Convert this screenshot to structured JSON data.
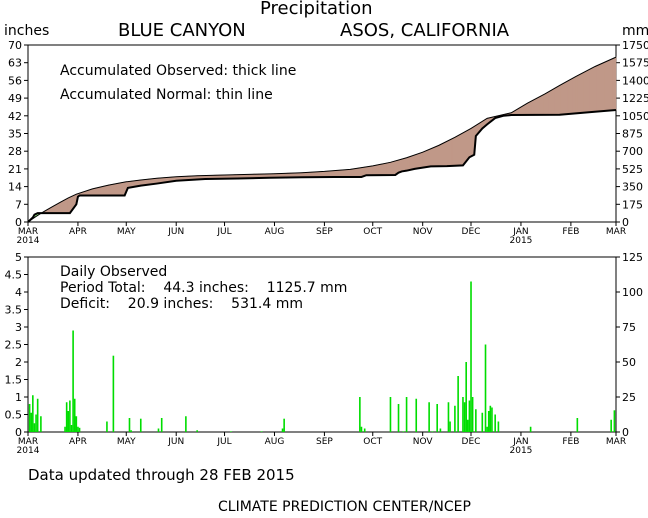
{
  "header": {
    "title": "Precipitation",
    "left_unit": "inches",
    "right_unit": "mm",
    "station": "BLUE CANYON",
    "network": "ASOS, CALIFORNIA"
  },
  "legend": {
    "line1": "Accumulated Observed: thick line",
    "line2": "Accumulated Normal: thin line"
  },
  "daily": {
    "title": "Daily Observed",
    "total": "Period Total:    44.3 inches:    1125.7 mm",
    "deficit": "Deficit:    20.9 inches:    531.4 mm"
  },
  "footer": {
    "updated": "Data updated through 28 FEB 2015",
    "credit": "CLIMATE PREDICTION CENTER/NCEP"
  },
  "chart_data": [
    {
      "type": "area",
      "x_tick_labels": [
        "MAR\n2014",
        "APR",
        "MAY",
        "JUN",
        "JUL",
        "AUG",
        "SEP",
        "OCT",
        "NOV",
        "DEC",
        "JAN\n2015",
        "FEB",
        "MAR"
      ],
      "y_ticks_inches": [
        0,
        7,
        14,
        21,
        28,
        35,
        42,
        49,
        56,
        63,
        70
      ],
      "y_ticks_mm": [
        0,
        175,
        350,
        525,
        700,
        875,
        1050,
        1225,
        1400,
        1575,
        1750
      ],
      "ylim": [
        0,
        70
      ],
      "ylim_mm": [
        0,
        1750
      ],
      "surplus_color": "#99ee88",
      "deficit_color": "#c09888",
      "series": [
        {
          "x": [
            0,
            5,
            10,
            15,
            20,
            25,
            30,
            40,
            50,
            61,
            70,
            80,
            92,
            105,
            122,
            140,
            153,
            170,
            184,
            200,
            214,
            225,
            235,
            245,
            255,
            265,
            275,
            285,
            300,
            310,
            321,
            330,
            340,
            352,
            365
          ],
          "values": [
            0,
            2.2,
            4.2,
            6,
            7.8,
            9.5,
            11,
            13.1,
            14.6,
            15.9,
            16.6,
            17.3,
            17.9,
            18.3,
            18.6,
            18.9,
            19.1,
            19.5,
            20,
            20.8,
            22.2,
            23.6,
            25.4,
            27.6,
            30.3,
            33.5,
            37,
            41,
            43.2,
            47,
            50.7,
            54,
            57.5,
            61.5,
            65.2
          ]
        },
        {
          "x": [
            0,
            3,
            4,
            6,
            10,
            15,
            20,
            26,
            30,
            31,
            32,
            50,
            60,
            62,
            70,
            80,
            92,
            110,
            130,
            150,
            170,
            190,
            207,
            210,
            228,
            230,
            232,
            235,
            240,
            245,
            250,
            260,
            270,
            274,
            277,
            278,
            282,
            285,
            290,
            295,
            300,
            330,
            350,
            365
          ],
          "values": [
            0,
            1.8,
            2.9,
            3.5,
            3.5,
            3.5,
            3.5,
            3.5,
            7,
            10,
            10.5,
            10.5,
            10.5,
            13.5,
            14.4,
            15.2,
            16.3,
            17,
            17.2,
            17.5,
            17.7,
            17.8,
            17.8,
            18.5,
            18.6,
            19.5,
            20,
            20.3,
            21,
            21.5,
            22,
            22.1,
            22.4,
            25.6,
            26.6,
            34,
            37,
            38.6,
            41.1,
            42,
            42.3,
            42.4,
            43.5,
            44.3
          ]
        }
      ]
    },
    {
      "type": "bar",
      "ylabel": "",
      "x_tick_labels": [
        "MAR\n2014",
        "APR",
        "MAY",
        "JUN",
        "JUL",
        "AUG",
        "SEP",
        "OCT",
        "NOV",
        "DEC",
        "JAN\n2015",
        "FEB",
        "MAR"
      ],
      "y_ticks_inches": [
        0,
        0.5,
        1,
        1.5,
        2,
        2.5,
        3,
        3.5,
        4,
        4.5,
        5
      ],
      "y_ticks_mm": [
        0,
        25,
        50,
        75,
        100,
        125
      ],
      "ylim": [
        0,
        5
      ],
      "ylim_mm": [
        0,
        125
      ],
      "bar_color": "#00dd00",
      "x": [
        1,
        2,
        3,
        4,
        5,
        6,
        8,
        23,
        24,
        25,
        26,
        27,
        28,
        29,
        30,
        31,
        32,
        49,
        53,
        63,
        64,
        70,
        81,
        83,
        98,
        105,
        126,
        145,
        158,
        159,
        206,
        207,
        209,
        225,
        230,
        233,
        235,
        241,
        249,
        251,
        254,
        256,
        261,
        262,
        265,
        267,
        270,
        271,
        272,
        273,
        274,
        275,
        276,
        278,
        282,
        284,
        285,
        286,
        287,
        288,
        290,
        292,
        312,
        341,
        362,
        364
      ],
      "values": [
        0.8,
        0.55,
        1.05,
        0.25,
        0.5,
        0.95,
        0.45,
        0.15,
        0.85,
        0.6,
        0.9,
        0.2,
        2.9,
        0.95,
        0.45,
        0.15,
        0.12,
        0.3,
        2.18,
        0.4,
        0.05,
        0.38,
        0.1,
        0.4,
        0.45,
        0.05,
        0.02,
        0.02,
        0.1,
        0.38,
        1.0,
        0.15,
        0.1,
        1.0,
        0.8,
        0.02,
        1.0,
        0.95,
        0.85,
        0.02,
        0.8,
        0.1,
        0.85,
        0.3,
        0.75,
        1.6,
        1.0,
        0.85,
        2.0,
        0.35,
        0.9,
        4.3,
        1.0,
        0.65,
        0.55,
        2.5,
        0.15,
        0.6,
        0.75,
        0.7,
        0.5,
        0.3,
        0.15,
        0.4,
        0.35,
        0.62
      ]
    }
  ]
}
